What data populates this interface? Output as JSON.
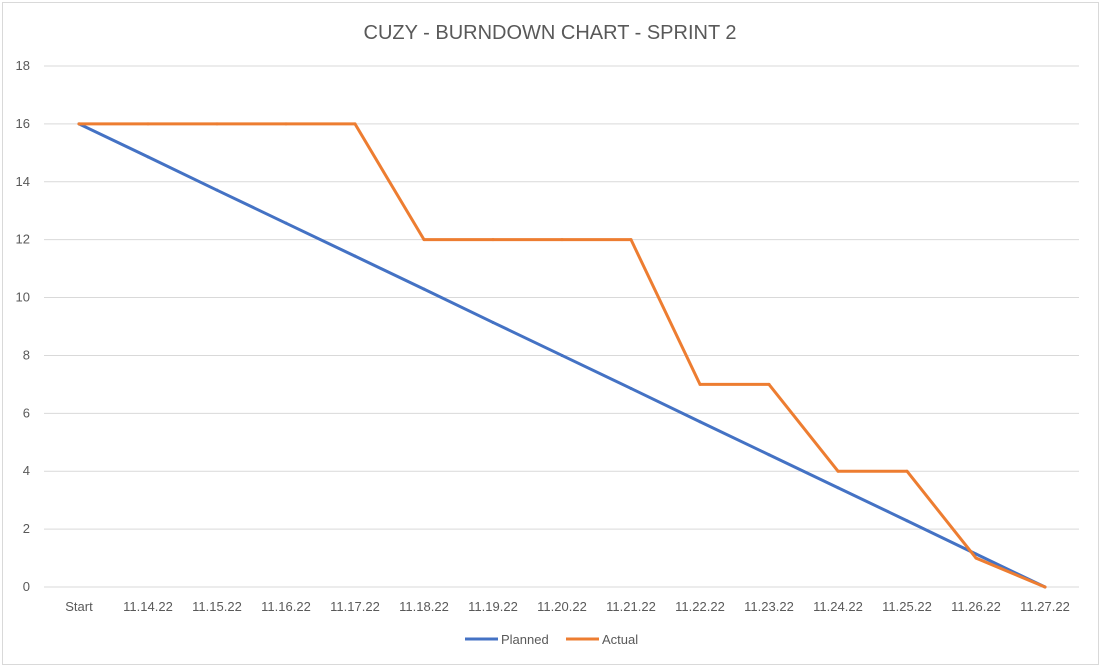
{
  "chart_data": {
    "type": "line",
    "title": "CUZY - BURNDOWN CHART - SPRINT 2",
    "xlabel": "",
    "ylabel": "",
    "categories": [
      "Start",
      "11.14.22",
      "11.15.22",
      "11.16.22",
      "11.17.22",
      "11.18.22",
      "11.19.22",
      "11.20.22",
      "11.21.22",
      "11.22.22",
      "11.23.22",
      "11.24.22",
      "11.25.22",
      "11.26.22",
      "11.27.22"
    ],
    "ylim": [
      0,
      18
    ],
    "yticks": [
      0,
      2,
      4,
      6,
      8,
      10,
      12,
      14,
      16,
      18
    ],
    "grid": true,
    "legend_position": "bottom",
    "series": [
      {
        "name": "Planned",
        "color": "#4472c4",
        "values": [
          16,
          14.86,
          13.71,
          12.57,
          11.43,
          10.29,
          9.14,
          8.0,
          6.86,
          5.71,
          4.57,
          3.43,
          2.29,
          1.14,
          0
        ]
      },
      {
        "name": "Actual",
        "color": "#ed7d31",
        "values": [
          16,
          16,
          16,
          16,
          16,
          12,
          12,
          12,
          12,
          7,
          7,
          4,
          4,
          1,
          0
        ]
      }
    ]
  }
}
